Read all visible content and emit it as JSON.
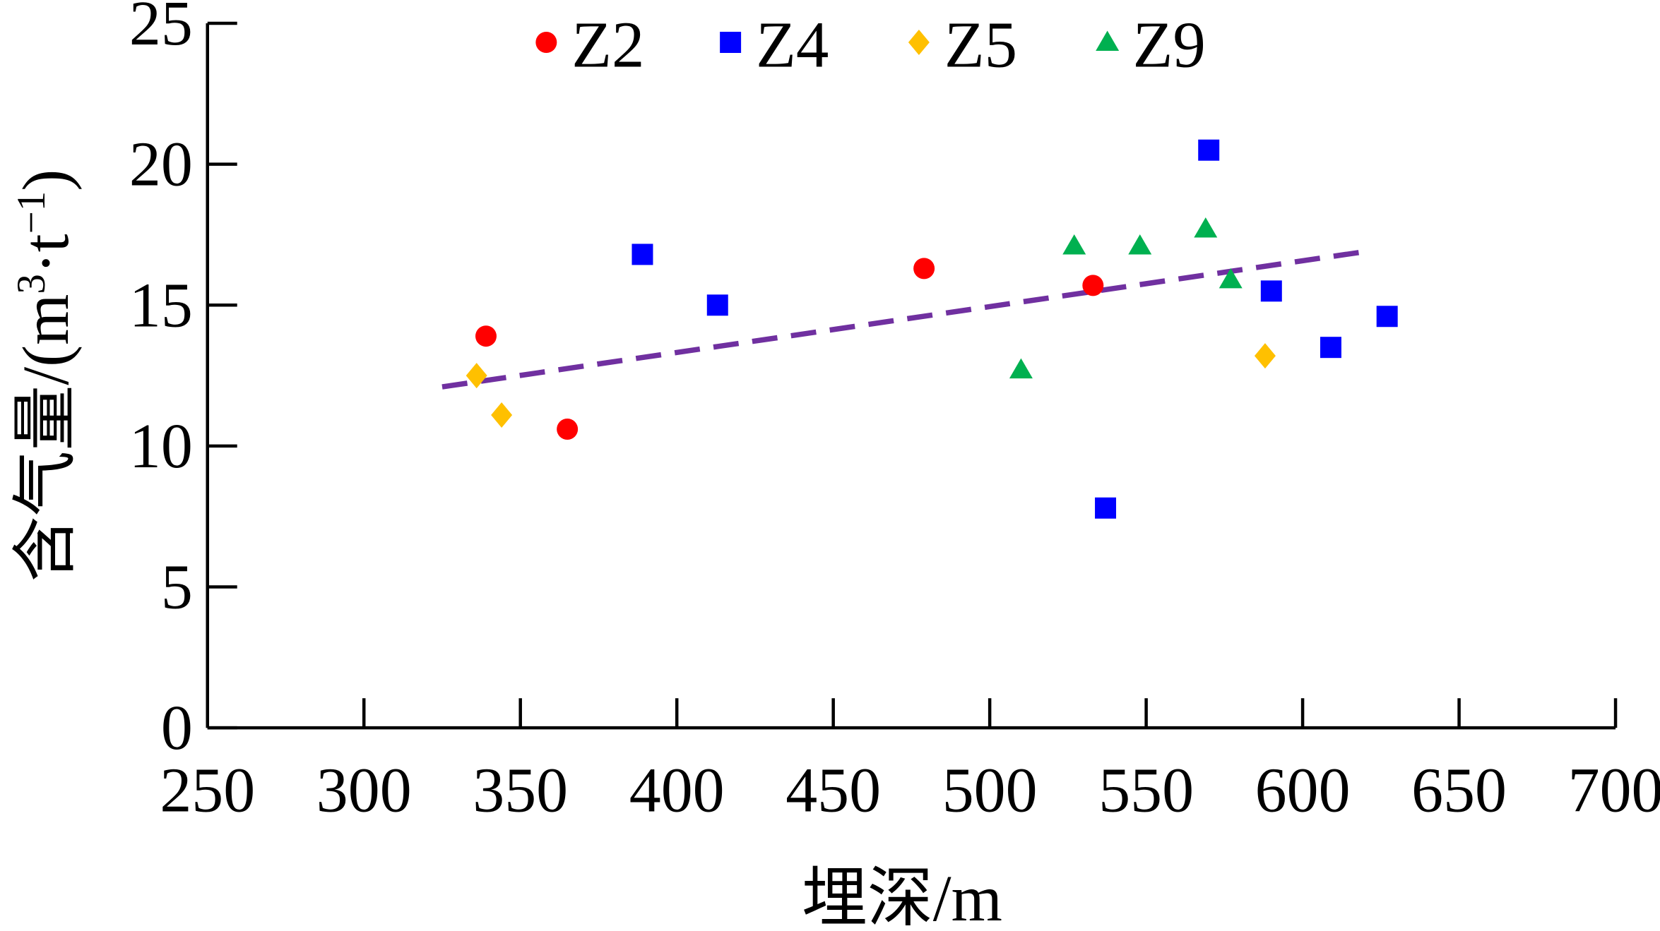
{
  "chart_data": {
    "type": "scatter",
    "title": "",
    "xlabel": "埋深/m",
    "ylabel_parts": {
      "main": "含气量/(m",
      "sup1": "3",
      "mid": "·t",
      "sup2": "−1",
      "end": ")"
    },
    "xlim": [
      250,
      700
    ],
    "ylim": [
      0,
      25
    ],
    "xticks": [
      "250",
      "300",
      "350",
      "400",
      "450",
      "500",
      "550",
      "600",
      "650",
      "700"
    ],
    "yticks": [
      "0",
      "5",
      "10",
      "15",
      "20",
      "25"
    ],
    "grid": false,
    "legend_placement": "top",
    "series": [
      {
        "name": "Z2",
        "marker": "circle",
        "color": "#ff0000",
        "points": [
          [
            339,
            13.9
          ],
          [
            365,
            10.6
          ],
          [
            479,
            16.3
          ],
          [
            533,
            15.7
          ]
        ]
      },
      {
        "name": "Z4",
        "marker": "square",
        "color": "#0000ff",
        "points": [
          [
            389,
            16.8
          ],
          [
            413,
            15.0
          ],
          [
            570,
            20.5
          ],
          [
            537,
            7.8
          ],
          [
            590,
            15.5
          ],
          [
            609,
            13.5
          ],
          [
            627,
            14.6
          ]
        ]
      },
      {
        "name": "Z5",
        "marker": "diamond",
        "color": "#ffc000",
        "points": [
          [
            336,
            12.5
          ],
          [
            344,
            11.1
          ],
          [
            588,
            13.2
          ]
        ]
      },
      {
        "name": "Z9",
        "marker": "triangle",
        "color": "#00b050",
        "points": [
          [
            510,
            12.7
          ],
          [
            527,
            17.1
          ],
          [
            548,
            17.1
          ],
          [
            569,
            17.7
          ],
          [
            577,
            15.9
          ]
        ]
      }
    ],
    "trendline": {
      "style": "dashed",
      "color": "#7030a0",
      "points": [
        [
          325,
          12.1
        ],
        [
          620,
          16.9
        ]
      ]
    }
  }
}
